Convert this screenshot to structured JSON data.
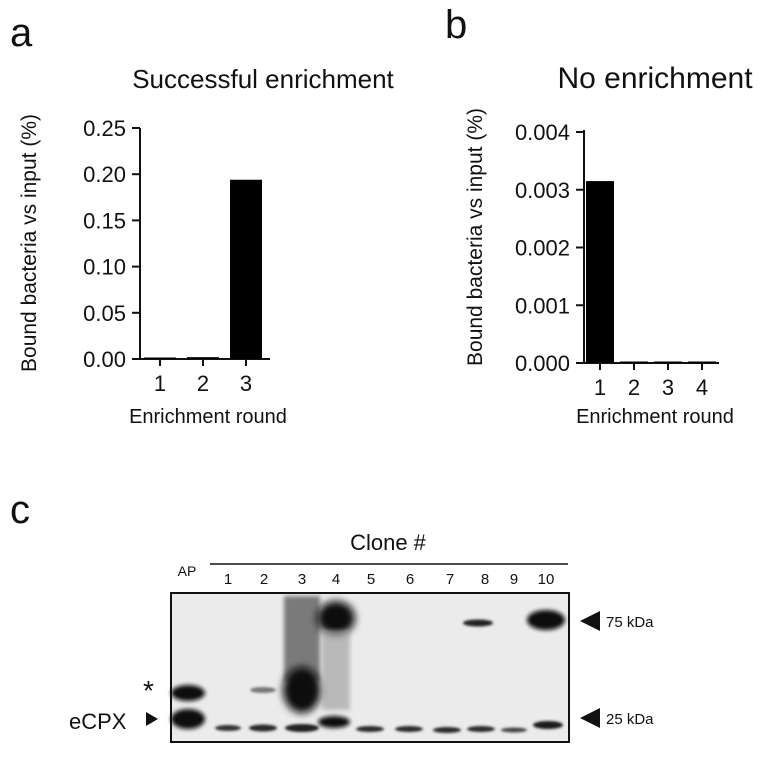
{
  "panels": {
    "a": {
      "letter": "a"
    },
    "b": {
      "letter": "b"
    },
    "c": {
      "letter": "c"
    }
  },
  "chart_data": [
    {
      "type": "bar",
      "panel": "a",
      "title": "Successful enrichment",
      "xlabel": "Enrichment round",
      "ylabel": "Bound bacteria vs input (%)",
      "categories": [
        "1",
        "2",
        "3"
      ],
      "values": [
        0.0003,
        0.002,
        0.194
      ],
      "ylim": [
        0,
        0.25
      ],
      "yticks": [
        "0.00",
        "0.05",
        "0.10",
        "0.15",
        "0.20",
        "0.25"
      ],
      "ytick_values": [
        0,
        0.05,
        0.1,
        0.15,
        0.2,
        0.25
      ],
      "bar_color": "#000000"
    },
    {
      "type": "bar",
      "panel": "b",
      "title": "No enrichment",
      "xlabel": "Enrichment round",
      "ylabel": "Bound bacteria vs input (%)",
      "categories": [
        "1",
        "2",
        "3",
        "4"
      ],
      "values": [
        0.00315,
        5e-06,
        1e-05,
        2e-05
      ],
      "ylim": [
        0,
        0.004
      ],
      "yticks": [
        "0.000",
        "0.001",
        "0.002",
        "0.003",
        "0.004"
      ],
      "ytick_values": [
        0,
        0.001,
        0.002,
        0.003,
        0.004
      ],
      "bar_color": "#000000"
    }
  ],
  "blot": {
    "header": "Clone #",
    "ap_label": "AP",
    "lanes": [
      "1",
      "2",
      "3",
      "4",
      "5",
      "6",
      "7",
      "8",
      "9",
      "10"
    ],
    "marker_75": "75 kDa",
    "marker_25": "25 kDa",
    "star": "*",
    "ecpx": "eCPX"
  }
}
